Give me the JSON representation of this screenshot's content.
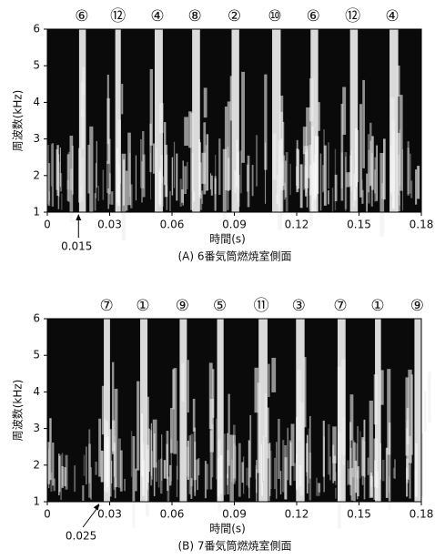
{
  "chart_data": [
    {
      "type": "spectrogram",
      "caption": "(A) 6番気筒燃焼室側面",
      "xlabel": "時間(s)",
      "ylabel": "周波数(kHz)",
      "xlim": [
        0,
        0.18
      ],
      "xticks": [
        0,
        0.03,
        0.06,
        0.09,
        0.12,
        0.15,
        0.18
      ],
      "ylim": [
        1,
        6
      ],
      "yticks": [
        1,
        2,
        3,
        4,
        5,
        6
      ],
      "annotations": [
        {
          "label": "⑥",
          "x": 0.0166
        },
        {
          "label": "⑫",
          "x": 0.034
        },
        {
          "label": "④",
          "x": 0.053
        },
        {
          "label": "⑧",
          "x": 0.071
        },
        {
          "label": "②",
          "x": 0.09
        },
        {
          "label": "⑩",
          "x": 0.1095
        },
        {
          "label": "⑥",
          "x": 0.128
        },
        {
          "label": "⑫",
          "x": 0.147
        },
        {
          "label": "④",
          "x": 0.166
        }
      ],
      "arrow": 0.015
    },
    {
      "type": "spectrogram",
      "caption": "(B) 7番気筒燃焼室側面",
      "xlabel": "時間(s)",
      "ylabel": "周波数(kHz)",
      "xlim": [
        0,
        0.18
      ],
      "xticks": [
        0,
        0.03,
        0.06,
        0.09,
        0.12,
        0.15,
        0.18
      ],
      "ylim": [
        1,
        6
      ],
      "yticks": [
        1,
        2,
        3,
        4,
        5,
        6
      ],
      "annotations": [
        {
          "label": "⑦",
          "x": 0.0285
        },
        {
          "label": "①",
          "x": 0.046
        },
        {
          "label": "⑨",
          "x": 0.065
        },
        {
          "label": "⑤",
          "x": 0.083
        },
        {
          "label": "⑪",
          "x": 0.103
        },
        {
          "label": "③",
          "x": 0.121
        },
        {
          "label": "⑦",
          "x": 0.141
        },
        {
          "label": "①",
          "x": 0.159
        },
        {
          "label": "⑨",
          "x": 0.178
        }
      ],
      "arrow": 0.025
    }
  ]
}
